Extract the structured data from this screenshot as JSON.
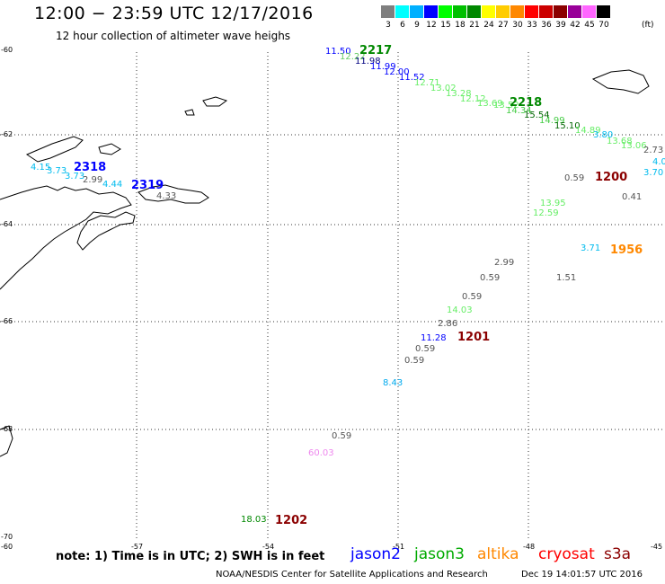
{
  "header": {
    "title": "12:00 − 23:59 UTC 12/17/2016",
    "subtitle": "12 hour collection of altimeter wave heighs"
  },
  "colorbar": {
    "colors": [
      "#7f7f7f",
      "#00ffff",
      "#00b0ff",
      "#0000ff",
      "#00ff00",
      "#00c000",
      "#008800",
      "#ffff00",
      "#ffcc00",
      "#ff8800",
      "#ff0000",
      "#cc0000",
      "#8b0000",
      "#990099",
      "#ff66ff",
      "#000000"
    ],
    "labels": [
      "3",
      "6",
      "9",
      "12",
      "15",
      "18",
      "21",
      "24",
      "27",
      "30",
      "33",
      "36",
      "39",
      "42",
      "45",
      "70"
    ],
    "unit": "(ft)"
  },
  "axes": {
    "lat_labels": [
      "-60",
      "-62",
      "-64",
      "-66",
      "-68",
      "-70"
    ],
    "lon_labels": [
      "-60",
      "-57",
      "-54",
      "-51",
      "-48",
      "-45"
    ]
  },
  "observations": [
    {
      "t": "11.50",
      "c": "#0000ff"
    },
    {
      "t": "12.22",
      "c": "#66cc66"
    },
    {
      "t": "11.98",
      "c": "#000080"
    },
    {
      "t": "11.99",
      "c": "#0000ff"
    },
    {
      "t": "12.00",
      "c": "#0000ff"
    },
    {
      "t": "11.52",
      "c": "#0000ff"
    },
    {
      "t": "12.71",
      "c": "#66ee66"
    },
    {
      "t": "13.02",
      "c": "#66ee66"
    },
    {
      "t": "13.28",
      "c": "#66ee66"
    },
    {
      "t": "12.12",
      "c": "#66ee66"
    },
    {
      "t": "13.69",
      "c": "#66ee66"
    },
    {
      "t": "13.52",
      "c": "#66ee66"
    },
    {
      "t": "14.34",
      "c": "#44cc44"
    },
    {
      "t": "15.54",
      "c": "#006600"
    },
    {
      "t": "14.99",
      "c": "#44cc44"
    },
    {
      "t": "15.10",
      "c": "#006600"
    },
    {
      "t": "14.89",
      "c": "#66ee66"
    },
    {
      "t": "3.80",
      "c": "#00bbee"
    },
    {
      "t": "13.68",
      "c": "#66ee66"
    },
    {
      "t": "13.06",
      "c": "#66ee66"
    },
    {
      "t": "2.73",
      "c": "#555555"
    },
    {
      "t": "4.0",
      "c": "#00bbee"
    },
    {
      "t": "3.70",
      "c": "#00bbee"
    },
    {
      "t": "0.59",
      "c": "#555555"
    },
    {
      "t": "0.41",
      "c": "#555555"
    },
    {
      "t": "13.95",
      "c": "#66ee66"
    },
    {
      "t": "12.59",
      "c": "#66ee66"
    },
    {
      "t": "3.71",
      "c": "#00bbee"
    },
    {
      "t": "2.99",
      "c": "#555555"
    },
    {
      "t": "0.59",
      "c": "#555555"
    },
    {
      "t": "1.51",
      "c": "#555555"
    },
    {
      "t": "0.59",
      "c": "#555555"
    },
    {
      "t": "14.03",
      "c": "#66ee66"
    },
    {
      "t": "2.86",
      "c": "#555555"
    },
    {
      "t": "11.28",
      "c": "#0000ff"
    },
    {
      "t": "0.59",
      "c": "#555555"
    },
    {
      "t": "0.59",
      "c": "#555555"
    },
    {
      "t": "8.43",
      "c": "#00aaee"
    },
    {
      "t": "0.59",
      "c": "#555555"
    },
    {
      "t": "60.03",
      "c": "#ee88ee"
    },
    {
      "t": "18.03",
      "c": "#008800"
    },
    {
      "t": "4.15",
      "c": "#00bbee"
    },
    {
      "t": "3.73",
      "c": "#00bbee"
    },
    {
      "t": "3.73",
      "c": "#00bbee"
    },
    {
      "t": "4.44",
      "c": "#00bbee"
    },
    {
      "t": "2.99",
      "c": "#555555"
    },
    {
      "t": "4.33",
      "c": "#555555"
    }
  ],
  "track_times": [
    {
      "t": "2217",
      "c": "#008800"
    },
    {
      "t": "2218",
      "c": "#008800"
    },
    {
      "t": "1200",
      "c": "#8b0000"
    },
    {
      "t": "1956",
      "c": "#ff8800"
    },
    {
      "t": "1201",
      "c": "#8b0000"
    },
    {
      "t": "1202",
      "c": "#8b0000"
    },
    {
      "t": "2318",
      "c": "#0000ff"
    },
    {
      "t": "2319",
      "c": "#0000ff"
    }
  ],
  "footer": {
    "note": "note:  1) Time is in UTC;  2) SWH is in feet",
    "satellites": [
      {
        "name": "jason2",
        "color": "#0000ff"
      },
      {
        "name": "jason3",
        "color": "#00aa00"
      },
      {
        "name": "altika",
        "color": "#ff8800"
      },
      {
        "name": "cryosat",
        "color": "#ff0000"
      },
      {
        "name": "s3a",
        "color": "#8b0000"
      }
    ],
    "credit": "NOAA/NESDIS Center for Satellite Applications and Research",
    "timestamp": "Dec 19 14:01:57 UTC 2016"
  }
}
